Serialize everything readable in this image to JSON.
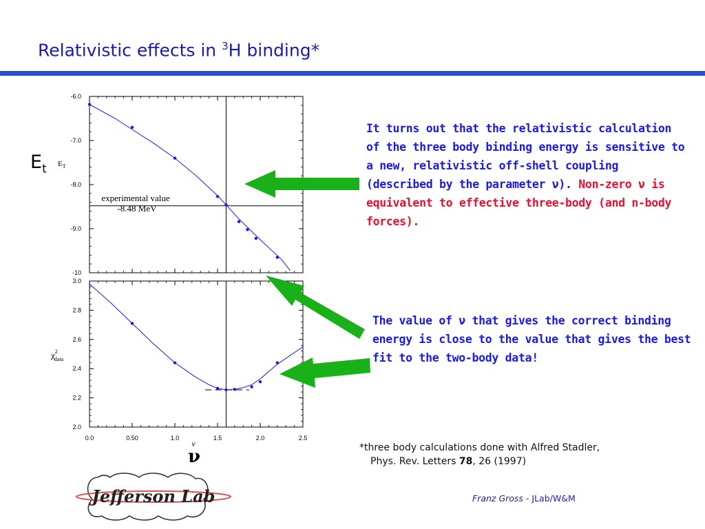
{
  "slide": {
    "title_main": "Relativistic effects in ",
    "title_sup": "3",
    "title_end": "H binding*",
    "et_label_main": "E",
    "et_label_sub": "t",
    "nu_label": "ν",
    "para1_part1": "It turns out that the relativistic calculation of the three body binding energy is sensitive to a new, relativistic off-shell coupling (described by the parameter ν). ",
    "para1_part2": "Non-zero ν is equivalent to effective three-body (and n-body forces).",
    "para2": "The value of ν that gives the correct binding energy is close to the value that gives the best fit to the two-body data!",
    "footnote_line1": "*three body calculations done with Alfred Stadler,",
    "footnote_line2_prefix": "Phys. Rev. Letters ",
    "footnote_line2_bold": "78",
    "footnote_line2_suffix": ", 26 (1997)",
    "author_name": "Franz Gross",
    "author_affil": " - JLab/W&M",
    "logo_text": "Jefferson Lab",
    "colors": {
      "title": "#1a1ab0",
      "rule": "#2a4fd6",
      "text_blue": "#1a1ae6",
      "text_red": "#e8102e",
      "arrow": "#19b019",
      "curve": "#1a1ae6"
    }
  },
  "chart_data": [
    {
      "type": "line",
      "ylabel_main": "E",
      "ylabel_sub": "T",
      "xlim": [
        0.0,
        2.5
      ],
      "ylim": [
        -10,
        -6.0
      ],
      "yticks": [
        -6.0,
        -7.0,
        -8.0,
        -9.0,
        -10
      ],
      "ytick_labels": [
        "-6.0",
        "-7.0",
        "-8.0",
        "-9.0",
        "-10"
      ],
      "curve_x": [
        0.0,
        0.3,
        0.5,
        0.75,
        1.0,
        1.25,
        1.5,
        1.6,
        1.75,
        2.0,
        2.25,
        2.35
      ],
      "curve_y": [
        -6.18,
        -6.5,
        -6.75,
        -7.06,
        -7.4,
        -7.8,
        -8.25,
        -8.46,
        -8.78,
        -9.25,
        -9.7,
        -9.95
      ],
      "points_x": [
        0.0,
        0.5,
        1.0,
        1.5,
        1.6,
        1.75,
        1.85,
        1.95,
        2.2
      ],
      "points_y": [
        -6.18,
        -6.7,
        -7.4,
        -8.27,
        -8.46,
        -8.84,
        -9.02,
        -9.22,
        -9.65
      ],
      "vline_x": 1.6,
      "hline_y": -8.48,
      "annotation_line1": "experimental value",
      "annotation_line2": "-8.48 MeV"
    },
    {
      "type": "line",
      "ylabel_main": "χ",
      "ylabel_sup": "2",
      "ylabel_sub": "data",
      "xlabel": "ν",
      "xlim": [
        0.0,
        2.5
      ],
      "ylim": [
        2.0,
        3.0
      ],
      "yticks": [
        2.0,
        2.2,
        2.4,
        2.6,
        2.8,
        3.0
      ],
      "ytick_labels": [
        "2.0",
        "2.2",
        "2.4",
        "2.6",
        "2.8",
        "3.0"
      ],
      "xticks": [
        0.0,
        0.5,
        1.0,
        1.5,
        2.0,
        2.5
      ],
      "xtick_labels": [
        "0.0",
        "0.50",
        "1.0",
        "1.5",
        "2.0",
        "2.5"
      ],
      "curve_x": [
        0.0,
        0.25,
        0.5,
        0.75,
        1.0,
        1.25,
        1.4,
        1.5,
        1.6,
        1.7,
        1.8,
        1.9,
        2.0,
        2.2,
        2.5
      ],
      "curve_y": [
        2.98,
        2.85,
        2.71,
        2.57,
        2.44,
        2.34,
        2.29,
        2.265,
        2.255,
        2.258,
        2.27,
        2.29,
        2.33,
        2.43,
        2.55
      ],
      "points_x": [
        0.5,
        1.0,
        1.5,
        1.6,
        1.7,
        1.9,
        2.0,
        2.2
      ],
      "points_y": [
        2.71,
        2.44,
        2.265,
        2.255,
        2.258,
        2.275,
        2.31,
        2.44
      ],
      "vline_x": 1.6
    }
  ]
}
